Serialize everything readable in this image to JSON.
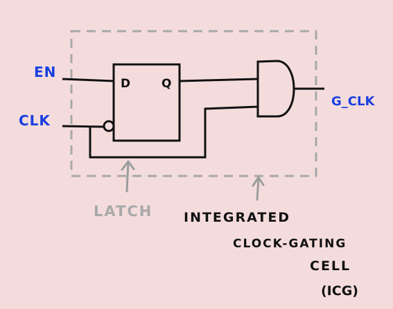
{
  "labels": {
    "en": "EN",
    "clk": "CLK",
    "gclk": "G_CLK",
    "latch_d": "D",
    "latch_q": "Q",
    "latch": "LATCH",
    "icg_line1": "INTEGRATED",
    "icg_line2": "CLOCK-GATING",
    "icg_line3": "CELL",
    "icg_line4": "(ICG)"
  },
  "colors": {
    "background": "#f4dcdd",
    "ink": "#111111",
    "signal_label": "#1a3fe0",
    "annotation_gray": "#a9a9a9",
    "boundary_dash": "#a8a8a8"
  }
}
